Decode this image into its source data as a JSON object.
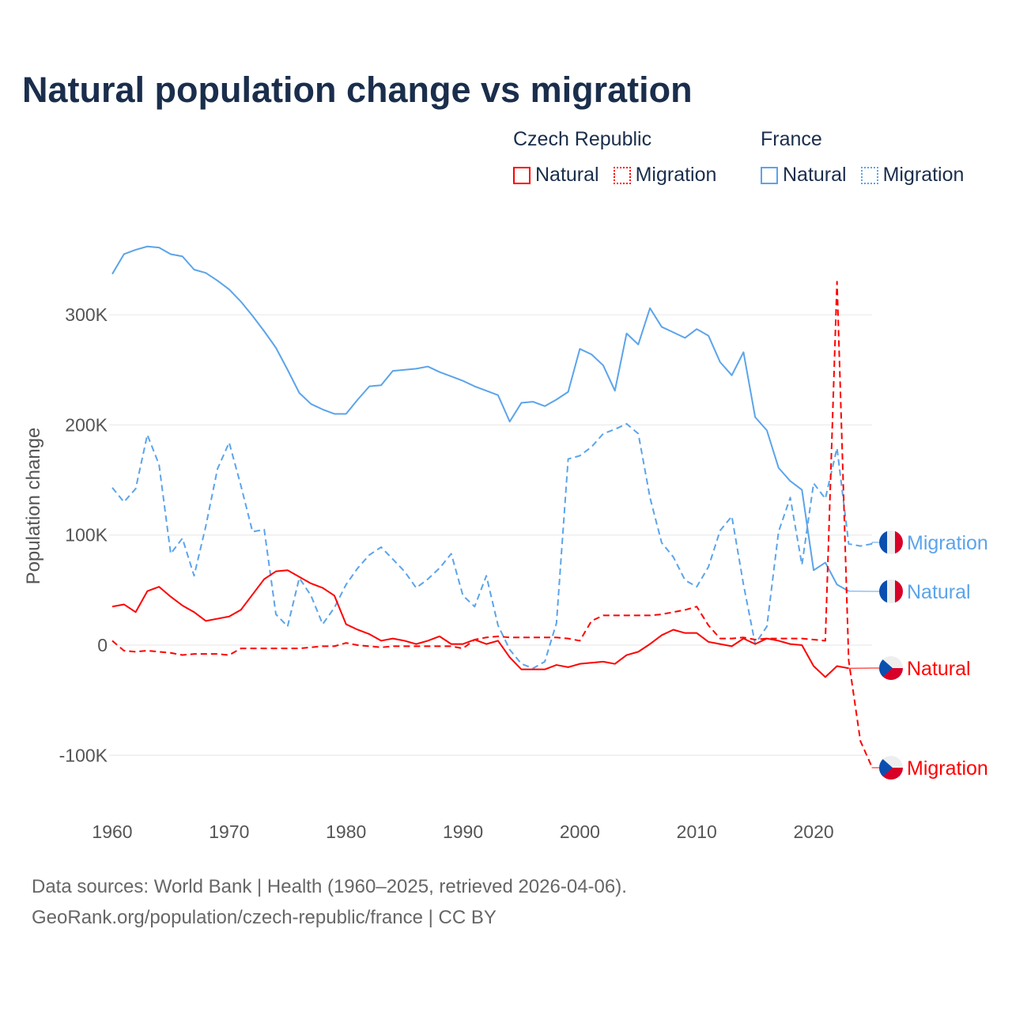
{
  "title": "Natural population change vs migration",
  "legend": [
    {
      "group": "Czech Republic",
      "items": [
        {
          "label": "Natural",
          "color": "#ff0000",
          "style": "solid"
        },
        {
          "label": "Migration",
          "color": "#ff0000",
          "style": "dotted"
        }
      ]
    },
    {
      "group": "France",
      "items": [
        {
          "label": "Natural",
          "color": "#5ba4ea",
          "style": "solid"
        },
        {
          "label": "Migration",
          "color": "#5ba4ea",
          "style": "dotted"
        }
      ]
    }
  ],
  "footer": {
    "line1": "Data sources: World Bank | Health (1960–2025, retrieved 2026-04-06).",
    "line2": "GeoRank.org/population/czech-republic/france | CC BY"
  },
  "chart_data": {
    "type": "line",
    "title": "Natural population change vs migration",
    "xlabel": "",
    "ylabel": "Population change",
    "xlim": [
      1960,
      2025
    ],
    "ylim": [
      -150000,
      350000
    ],
    "x_ticks": [
      1960,
      1970,
      1980,
      1990,
      2000,
      2010,
      2020
    ],
    "x_tick_labels": [
      "1960",
      "1970",
      "1980",
      "1990",
      "2000",
      "2010",
      "2020"
    ],
    "y_ticks": [
      -100000,
      0,
      100000,
      200000,
      300000
    ],
    "y_tick_labels": [
      "-100K",
      "0",
      "100K",
      "200K",
      "300K"
    ],
    "grid": true,
    "legend_position": "top-right",
    "start_year": 1960,
    "series": [
      {
        "name": "France Natural",
        "end_label": "Natural",
        "country": "France",
        "color": "#5ba4ea",
        "dash": false,
        "values": [
          337,
          355,
          359,
          362,
          361,
          355,
          353,
          341,
          338,
          331,
          323,
          312,
          299,
          285,
          270,
          250,
          229,
          219,
          214,
          210,
          210,
          223,
          235,
          236,
          249,
          250,
          251,
          253,
          248,
          244,
          240,
          235,
          231,
          227,
          203,
          220,
          221,
          217,
          223,
          230,
          269,
          264,
          254,
          231,
          283,
          273,
          306,
          289,
          284,
          279,
          287,
          281,
          257,
          245,
          266,
          207,
          195,
          161,
          149,
          141,
          68,
          75,
          55,
          49
        ]
      },
      {
        "name": "France Migration",
        "end_label": "Migration",
        "country": "France",
        "color": "#5ba4ea",
        "dash": true,
        "values": [
          143,
          130,
          142,
          191,
          164,
          83,
          97,
          63,
          108,
          160,
          184,
          145,
          103,
          105,
          28,
          17,
          61,
          45,
          19,
          34,
          55,
          70,
          82,
          89,
          78,
          67,
          52,
          60,
          70,
          83,
          45,
          35,
          63,
          18,
          -4,
          -17,
          -21,
          -15,
          20,
          169,
          172,
          180,
          192,
          196,
          201,
          192,
          134,
          93,
          80,
          59,
          53,
          71,
          104,
          117,
          55,
          1,
          17,
          103,
          134,
          73,
          147,
          133,
          179,
          92,
          90,
          92
        ]
      },
      {
        "name": "Czech Republic Natural",
        "end_label": "Natural",
        "country": "Czech Republic",
        "color": "#ff0000",
        "dash": false,
        "values": [
          35,
          37,
          30,
          49,
          53,
          44,
          36,
          30,
          22,
          24,
          26,
          32,
          46,
          60,
          67,
          68,
          62,
          56,
          52,
          45,
          19,
          14,
          10,
          4,
          6,
          4,
          1,
          4,
          8,
          1,
          1,
          5,
          1,
          4,
          -11,
          -22,
          -22,
          -22,
          -18,
          -20,
          -17,
          -16,
          -15,
          -17,
          -9,
          -6,
          1,
          9,
          14,
          11,
          11,
          3,
          1,
          -1,
          6,
          1,
          6,
          4,
          1,
          0,
          -19,
          -29,
          -19,
          -21
        ]
      },
      {
        "name": "Czech Republic Migration",
        "end_label": "Migration",
        "country": "Czech Republic",
        "color": "#ff0000",
        "dash": true,
        "values": [
          4,
          -5,
          -6,
          -5,
          -6,
          -7,
          -9,
          -8,
          -8,
          -8,
          -9,
          -3,
          -3,
          -3,
          -3,
          -3,
          -3,
          -2,
          -1,
          -1,
          2,
          0,
          -1,
          -2,
          -1,
          -1,
          -1,
          -1,
          -1,
          -1,
          -3,
          5,
          7,
          8,
          7,
          7,
          7,
          7,
          7,
          6,
          4,
          22,
          27,
          27,
          27,
          27,
          27,
          28,
          30,
          32,
          35,
          18,
          6,
          6,
          7,
          5,
          6,
          6,
          6,
          6,
          5,
          4,
          330,
          -14,
          -87,
          -111
        ]
      }
    ],
    "value_units": "thousands"
  }
}
